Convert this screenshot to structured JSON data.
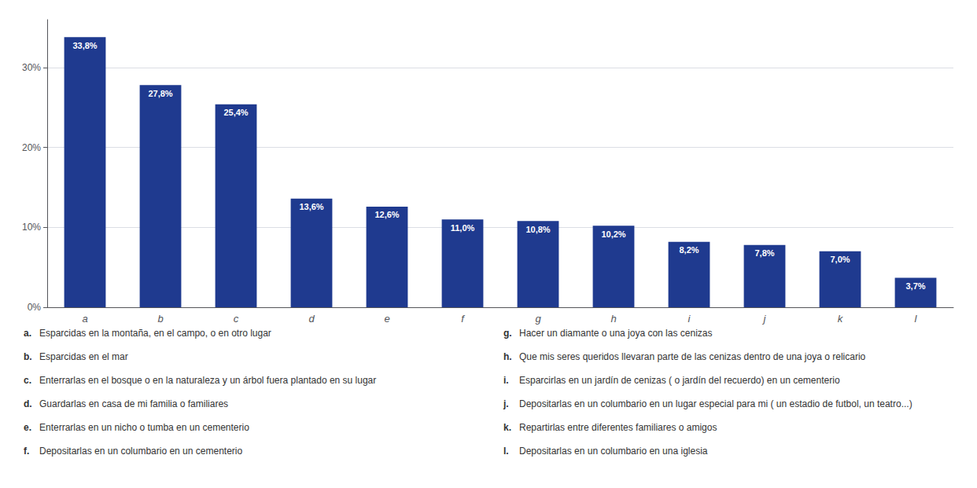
{
  "chart_data": {
    "type": "bar",
    "categories": [
      "a",
      "b",
      "c",
      "d",
      "e",
      "f",
      "g",
      "h",
      "i",
      "j",
      "k",
      "l"
    ],
    "values": [
      33.8,
      27.8,
      25.4,
      13.6,
      12.6,
      11.0,
      10.8,
      10.2,
      8.2,
      7.8,
      7.0,
      3.7
    ],
    "value_labels": [
      "33,8%",
      "27,8%",
      "25,4%",
      "13,6%",
      "12,6%",
      "11,0%",
      "10,8%",
      "10,2%",
      "8,2%",
      "7,8%",
      "7,0%",
      "3,7%"
    ],
    "color": "#1F3A8F",
    "ylim": [
      0,
      36
    ],
    "yticks": [
      {
        "value": 0,
        "label": "0%"
      },
      {
        "value": 10,
        "label": "10%"
      },
      {
        "value": 20,
        "label": "20%"
      },
      {
        "value": 30,
        "label": "30%"
      }
    ],
    "grid": true,
    "data_labels": true,
    "annotations": [
      {
        "label": "a.",
        "text": "Esparcidas en la montaña, en el campo, o en otro lugar"
      },
      {
        "label": "b.",
        "text": "Esparcidas en el mar"
      },
      {
        "label": "c.",
        "text": "Enterrarlas en el bosque o en la naturaleza y un árbol fuera plantado en su lugar"
      },
      {
        "label": "d.",
        "text": "Guardarlas en casa de mi familia o familiares"
      },
      {
        "label": "e.",
        "text": "Enterrarlas en un nicho o tumba en un cementerio"
      },
      {
        "label": "f.",
        "text": "Depositarlas en un columbario en un cementerio"
      },
      {
        "label": "g.",
        "text": "Hacer un diamante o una joya con las cenizas"
      },
      {
        "label": "h.",
        "text": "Que mis seres queridos llevaran parte de las cenizas dentro de una joya o relicario"
      },
      {
        "label": "i.",
        "text": "Esparcirlas en un jardín de cenizas ( o jardín del recuerdo) en un cementerio"
      },
      {
        "label": "j.",
        "text": "Depositarlas en un columbario en un lugar especial para mi ( un estadio de futbol, un teatro...)"
      },
      {
        "label": "k.",
        "text": "Repartirlas entre diferentes familiares o amigos"
      },
      {
        "label": "l.",
        "text": "Depositarlas en un columbario en una iglesia"
      }
    ]
  }
}
